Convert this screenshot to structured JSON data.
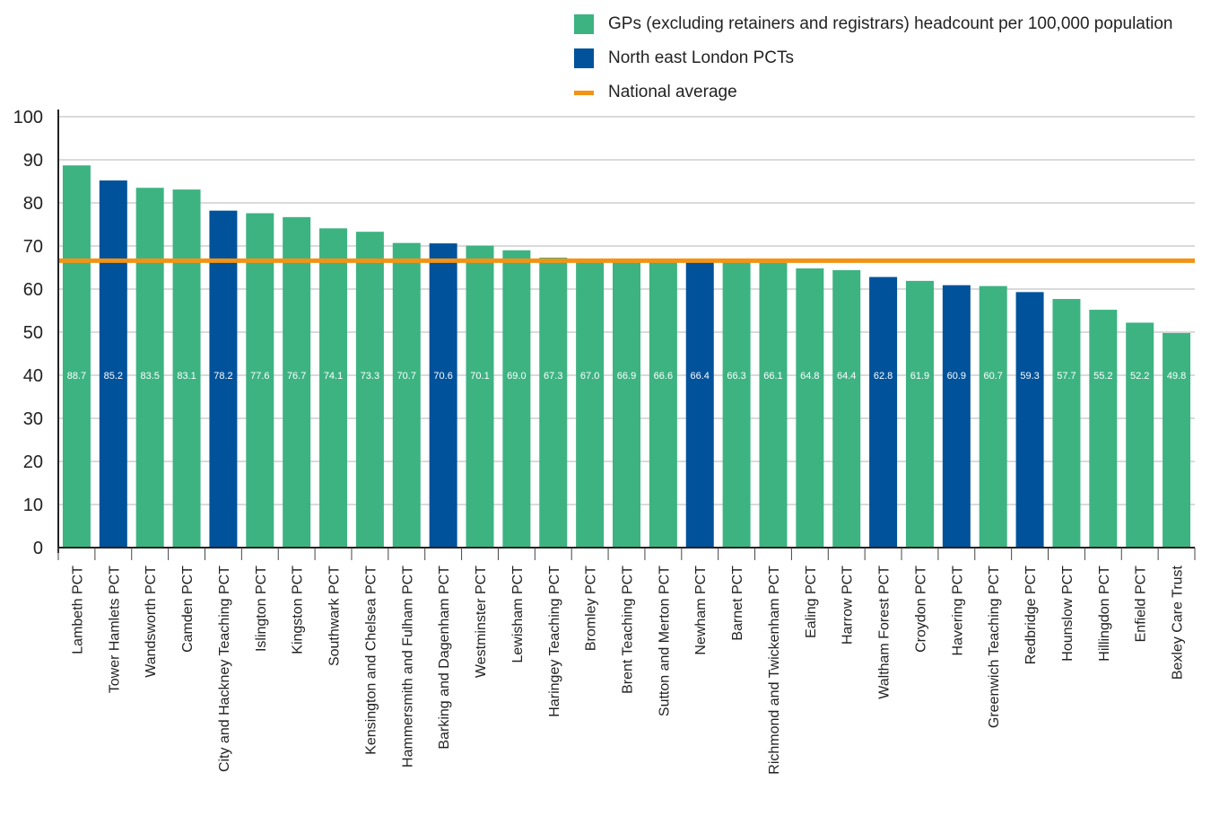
{
  "legend": {
    "items": [
      {
        "label": "GPs (excluding retainers and registrars) headcount per 100,000 population",
        "color": "#3db382",
        "kind": "box"
      },
      {
        "label": "North east London PCTs",
        "color": "#00529b",
        "kind": "box"
      },
      {
        "label": "National average",
        "color": "#f39314",
        "kind": "line"
      }
    ]
  },
  "chart_data": {
    "type": "bar",
    "title": "",
    "xlabel": "",
    "ylabel": "",
    "ylim": [
      0,
      100
    ],
    "yticks": [
      0,
      10,
      20,
      30,
      40,
      50,
      60,
      70,
      80,
      90,
      100
    ],
    "grid": true,
    "legend_position": "top-right",
    "national_average": 66.6,
    "colors": {
      "default": "#3db382",
      "highlight": "#00529b",
      "average": "#f39314"
    },
    "categories": [
      "Lambeth PCT",
      "Tower Hamlets PCT",
      "Wandsworth PCT",
      "Camden PCT",
      "City and Hackney Teaching PCT",
      "Islington PCT",
      "Kingston PCT",
      "Southwark PCT",
      "Kensington and Chelsea PCT",
      "Hammersmith and Fulham PCT",
      "Barking and Dagenham PCT",
      "Westminster PCT",
      "Lewisham PCT",
      "Haringey Teaching PCT",
      "Bromley PCT",
      "Brent Teaching PCT",
      "Sutton and Merton PCT",
      "Newham PCT",
      "Barnet PCT",
      "Richmond and Twickenham PCT",
      "Ealing PCT",
      "Harrow PCT",
      "Waltham Forest PCT",
      "Croydon PCT",
      "Havering PCT",
      "Greenwich Teaching PCT",
      "Redbridge PCT",
      "Hounslow PCT",
      "Hillingdon PCT",
      "Enfield PCT",
      "Bexley Care Trust"
    ],
    "values": [
      88.7,
      85.2,
      83.5,
      83.1,
      78.2,
      77.6,
      76.7,
      74.1,
      73.3,
      70.7,
      70.6,
      70.1,
      69.0,
      67.3,
      67.0,
      66.9,
      66.6,
      66.4,
      66.3,
      66.1,
      64.8,
      64.4,
      62.8,
      61.9,
      60.9,
      60.7,
      59.3,
      57.7,
      55.2,
      52.2,
      49.8
    ],
    "value_labels": [
      "88.7",
      "85.2",
      "83.5",
      "83.1",
      "78.2",
      "77.6",
      "76.7",
      "74.1",
      "73.3",
      "70.7",
      "70.6",
      "70.1",
      "69.0",
      "67.3",
      "67.0",
      "66.9",
      "66.6",
      "66.4",
      "66.3",
      "66.1",
      "64.8",
      "64.4",
      "62.8",
      "61.9",
      "60.9",
      "60.7",
      "59.3",
      "57.7",
      "55.2",
      "52.2",
      "49.8"
    ],
    "north_east_london": [
      false,
      true,
      false,
      false,
      true,
      false,
      false,
      false,
      false,
      false,
      true,
      false,
      false,
      false,
      false,
      false,
      false,
      true,
      false,
      false,
      false,
      false,
      true,
      false,
      true,
      false,
      true,
      false,
      false,
      false,
      false
    ]
  }
}
